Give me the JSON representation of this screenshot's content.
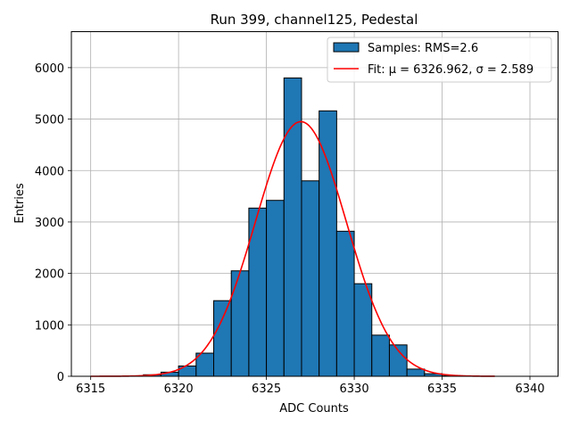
{
  "chart_data": {
    "type": "bar",
    "title": "Run 399, channel125, Pedestal",
    "xlabel": "ADC Counts",
    "ylabel": "Entries",
    "xlim": [
      6313.9,
      6341.6
    ],
    "ylim": [
      0,
      6700
    ],
    "xticks": [
      6315,
      6320,
      6325,
      6330,
      6335,
      6340
    ],
    "yticks": [
      0,
      1000,
      2000,
      3000,
      4000,
      5000,
      6000
    ],
    "grid": true,
    "legend_position": "top-right",
    "bin_width": 1,
    "bins": [
      {
        "x": 6318,
        "value": 30
      },
      {
        "x": 6319,
        "value": 80
      },
      {
        "x": 6320,
        "value": 200
      },
      {
        "x": 6321,
        "value": 450
      },
      {
        "x": 6322,
        "value": 1470
      },
      {
        "x": 6323,
        "value": 2050
      },
      {
        "x": 6324,
        "value": 3270
      },
      {
        "x": 6325,
        "value": 3420
      },
      {
        "x": 6326,
        "value": 5800
      },
      {
        "x": 6327,
        "value": 3800
      },
      {
        "x": 6328,
        "value": 5160
      },
      {
        "x": 6329,
        "value": 2820
      },
      {
        "x": 6330,
        "value": 1800
      },
      {
        "x": 6331,
        "value": 800
      },
      {
        "x": 6332,
        "value": 610
      },
      {
        "x": 6333,
        "value": 140
      },
      {
        "x": 6334,
        "value": 50
      },
      {
        "x": 6335,
        "value": 10
      }
    ],
    "fit": {
      "mu": 6326.962,
      "sigma": 2.589,
      "amplitude": 4950,
      "x_range": [
        6315,
        6338
      ]
    },
    "series": [
      {
        "name": "Samples: RMS=2.6",
        "kind": "histogram",
        "color": "#1f77b4"
      },
      {
        "name": "Fit: μ = 6326.962, σ = 2.589",
        "kind": "line",
        "color": "#ff0000"
      }
    ]
  }
}
